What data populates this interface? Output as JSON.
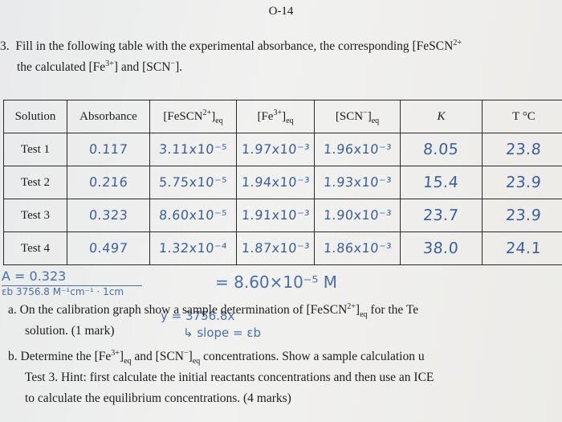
{
  "page_number": "O-14",
  "question": {
    "number": "3.",
    "line1_pre": "Fill in the following table with the experimental absorbance, the corresponding [FeSCN",
    "line1_sup": "2+",
    "line2_a": "the calculated [Fe",
    "line2_sup": "3+",
    "line2_b": "] and [SCN",
    "line2_sup2": "−",
    "line2_c": "]."
  },
  "table": {
    "headers": {
      "solution": "Solution",
      "absorbance": "Absorbance",
      "fescn": "[FeSCN",
      "fescn_sup": "2+",
      "fescn_end": "]",
      "fescn_sub": "eq",
      "fe": "[Fe",
      "fe_sup": "3+",
      "fe_end": "]",
      "fe_sub": "eq",
      "scn": "[SCN",
      "scn_sup": "−",
      "scn_end": "]",
      "scn_sub": "eq",
      "k": "K",
      "t": "T °C"
    },
    "rows": [
      {
        "solution": "Test 1",
        "absorbance": "0.117",
        "fescn": "3.11x10⁻⁵",
        "fe": "1.97x10⁻³",
        "scn": "1.96x10⁻³",
        "k": "8.05",
        "t": "23.8"
      },
      {
        "solution": "Test 2",
        "absorbance": "0.216",
        "fescn": "5.75x10⁻⁵",
        "fe": "1.94x10⁻³",
        "scn": "1.93x10⁻³",
        "k": "15.4",
        "t": "23.9"
      },
      {
        "solution": "Test 3",
        "absorbance": "0.323",
        "fescn": "8.60x10⁻⁵",
        "fe": "1.91x10⁻³",
        "scn": "1.90x10⁻³",
        "k": "23.7",
        "t": "23.9"
      },
      {
        "solution": "Test 4",
        "absorbance": "0.497",
        "fescn": "1.32x10⁻⁴",
        "fe": "1.87x10⁻³",
        "scn": "1.86x10⁻³",
        "k": "38.0",
        "t": "24.1"
      }
    ]
  },
  "handwritten": {
    "fraction_top": "A = 0.323",
    "fraction_bottom": "εb   3756.8 M⁻¹cm⁻¹ · 1cm",
    "result": "= 8.60×10⁻⁵ M",
    "eq": "y = 3756.8x",
    "slope": "↳ slope = εb"
  },
  "parts": {
    "a_label": "a.",
    "a_text_pre": "On the calibration graph show a sample determination of [FeSCN",
    "a_sup": "2+",
    "a_text_mid": "]",
    "a_sub": "eq",
    "a_text_post": " for the Te",
    "a_line2": "solution. (1 mark)",
    "b_label": "b.",
    "b_text_pre": "Determine the [Fe",
    "b_sup": "3+",
    "b_text_mid": "]",
    "b_sub": "eq",
    "b_text_mid2": " and [SCN",
    "b_sup2": "−",
    "b_text_mid3": "]",
    "b_sub2": "eq",
    "b_text_post": " concentrations.  Show a sample calculation u",
    "b_line2": "Test 3.  Hint: first calculate the initial reactants concentrations and then use an ICE",
    "b_line3": "to calculate the equilibrium concentrations. (4 marks)"
  },
  "colors": {
    "ink": "#3c5f9a",
    "text": "#1c1c1c",
    "paper": "#eeeeed"
  }
}
